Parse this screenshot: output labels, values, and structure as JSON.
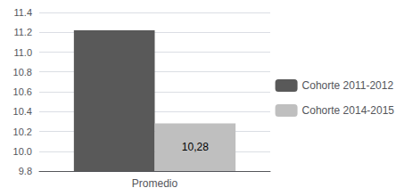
{
  "chart_data": {
    "type": "bar",
    "categories": [
      "Promedio"
    ],
    "series": [
      {
        "name": "Cohorte 2011-2012",
        "color": "#595959",
        "values": [
          11.22
        ]
      },
      {
        "name": "Cohorte 2014-2015",
        "color": "#bfbfbf",
        "values": [
          10.28
        ]
      }
    ],
    "annotations": [
      {
        "text": "10,28",
        "series": "Cohorte 2014-2015",
        "category": "Promedio"
      }
    ],
    "ylim": [
      9.8,
      11.4
    ],
    "yticks": [
      9.8,
      {
        "value": 10,
        "label": "10.0"
      },
      10.2,
      10.4,
      10.6,
      10.8,
      {
        "value": 11,
        "label": "11.0"
      },
      11.2,
      11.4
    ],
    "grid": true,
    "legend": "right"
  }
}
